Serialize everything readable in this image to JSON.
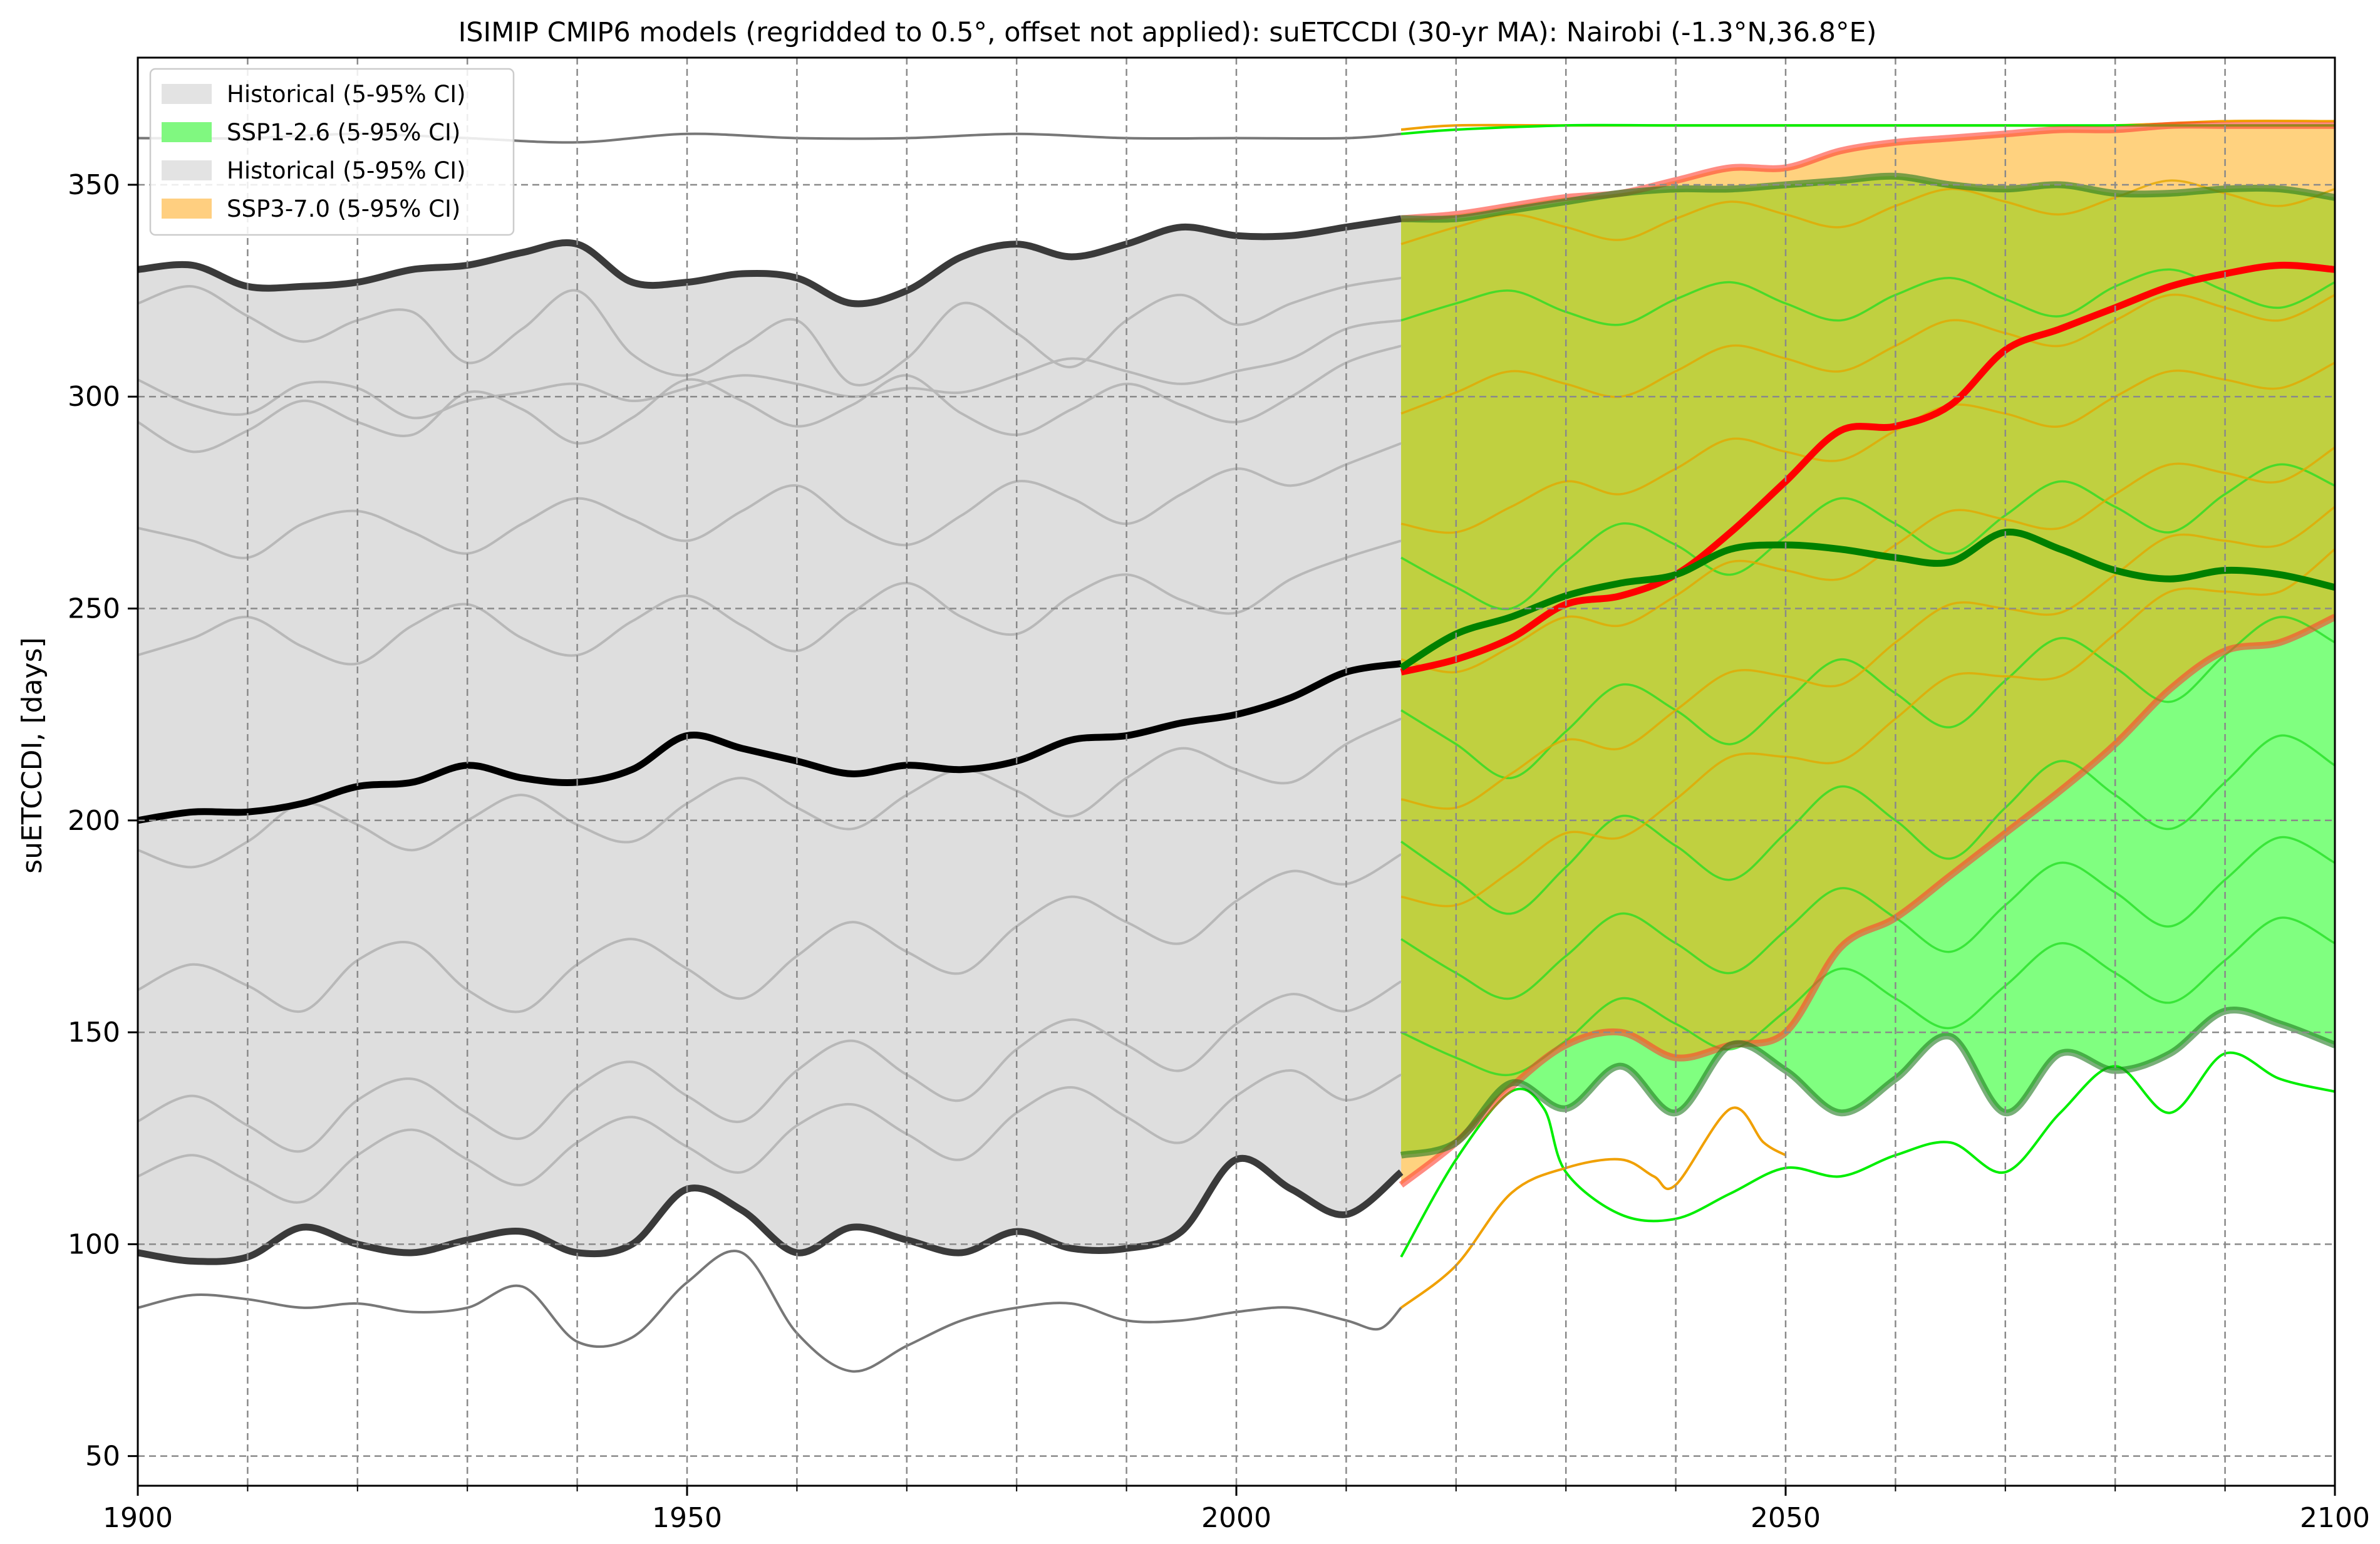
{
  "chart_data": {
    "type": "line",
    "title": "ISIMIP CMIP6 models (regridded to 0.5°, offset not applied): suETCCDI (30-yr MA): Nairobi (-1.3°N,36.8°E)",
    "xlabel": "",
    "ylabel": "suETCCDI, [days]",
    "xlim": [
      1900,
      2100
    ],
    "ylim": [
      43,
      380
    ],
    "x_ticks": [
      1900,
      1950,
      2000,
      2050,
      2100
    ],
    "y_ticks": [
      50,
      100,
      150,
      200,
      250,
      300,
      350
    ],
    "x_minor_ticks": [
      1910,
      1920,
      1930,
      1940,
      1960,
      1970,
      1980,
      1990,
      2010,
      2020,
      2030,
      2040,
      2060,
      2070,
      2080,
      2090
    ],
    "grid": true,
    "legend_position": "top-left",
    "legend": [
      {
        "label": "Historical (5-95% CI)",
        "color": "#e3e3e3"
      },
      {
        "label": "SSP1-2.6 (5-95% CI)",
        "color": "#80f880"
      },
      {
        "label": "Historical (5-95% CI)",
        "color": "#e3e3e3"
      },
      {
        "label": "SSP3-7.0 (5-95% CI)",
        "color": "#ffcf80"
      }
    ],
    "colors": {
      "historical_band": "#dedede",
      "ssp126_band": "#80ff80",
      "ssp370_band": "#ffa500",
      "overlap_band": "#c0d040",
      "historical_median": "#000000",
      "historical_bounds": "#3a3a3a",
      "ssp126_median": "#008000",
      "ssp370_median": "#ff0000"
    },
    "bands": [
      {
        "name": "Historical (5-95% CI)",
        "x": [
          1900,
          1905,
          1910,
          1915,
          1920,
          1925,
          1930,
          1935,
          1940,
          1945,
          1950,
          1955,
          1960,
          1965,
          1970,
          1975,
          1980,
          1985,
          1990,
          1995,
          2000,
          2005,
          2010,
          2015
        ],
        "lower": [
          98,
          96,
          97,
          104,
          100,
          98,
          101,
          103,
          98,
          100,
          113,
          108,
          98,
          104,
          101,
          98,
          103,
          99,
          99,
          103,
          120,
          113,
          107,
          117
        ],
        "upper": [
          330,
          331,
          326,
          326,
          327,
          330,
          331,
          334,
          336,
          327,
          327,
          329,
          328,
          322,
          325,
          333,
          336,
          333,
          336,
          340,
          338,
          338,
          340,
          342
        ]
      },
      {
        "name": "SSP1-2.6 (5-95% CI)",
        "x": [
          2015,
          2020,
          2025,
          2030,
          2035,
          2040,
          2045,
          2050,
          2055,
          2060,
          2065,
          2070,
          2075,
          2080,
          2085,
          2090,
          2095,
          2100
        ],
        "lower": [
          121,
          124,
          138,
          132,
          142,
          131,
          147,
          141,
          131,
          139,
          149,
          131,
          145,
          141,
          145,
          155,
          152,
          147
        ],
        "upper": [
          342,
          342,
          344,
          346,
          348,
          349,
          349,
          350,
          351,
          352,
          350,
          349,
          350,
          348,
          348,
          349,
          349,
          347
        ]
      },
      {
        "name": "SSP3-7.0 (5-95% CI)",
        "x": [
          2015,
          2020,
          2025,
          2030,
          2035,
          2040,
          2045,
          2050,
          2055,
          2060,
          2065,
          2070,
          2075,
          2080,
          2085,
          2090,
          2095,
          2100
        ],
        "lower": [
          114,
          124,
          137,
          147,
          150,
          144,
          147,
          150,
          170,
          177,
          187,
          197,
          207,
          218,
          231,
          240,
          242,
          248
        ],
        "upper": [
          342,
          343,
          345,
          347,
          348,
          351,
          354,
          354,
          358,
          360,
          361,
          362,
          363,
          363,
          364,
          364,
          364,
          364
        ]
      }
    ],
    "series": [
      {
        "name": "Historical median",
        "x": [
          1900,
          1905,
          1910,
          1915,
          1920,
          1925,
          1930,
          1935,
          1940,
          1945,
          1950,
          1955,
          1960,
          1965,
          1970,
          1975,
          1980,
          1985,
          1990,
          1995,
          2000,
          2005,
          2010,
          2015
        ],
        "y": [
          200,
          202,
          202,
          204,
          208,
          209,
          213,
          210,
          209,
          212,
          220,
          217,
          214,
          211,
          213,
          212,
          214,
          219,
          220,
          223,
          225,
          229,
          235,
          237
        ]
      },
      {
        "name": "SSP1-2.6 median",
        "x": [
          2015,
          2020,
          2025,
          2030,
          2035,
          2040,
          2045,
          2050,
          2055,
          2060,
          2065,
          2070,
          2075,
          2080,
          2085,
          2090,
          2095,
          2100
        ],
        "y": [
          236,
          244,
          248,
          253,
          256,
          258,
          264,
          265,
          264,
          262,
          261,
          268,
          264,
          259,
          257,
          259,
          258,
          255
        ]
      },
      {
        "name": "SSP3-7.0 median",
        "x": [
          2015,
          2020,
          2025,
          2030,
          2035,
          2040,
          2045,
          2050,
          2055,
          2060,
          2065,
          2070,
          2075,
          2080,
          2085,
          2090,
          2095,
          2100
        ],
        "y": [
          235,
          238,
          243,
          251,
          253,
          258,
          268,
          280,
          292,
          293,
          298,
          311,
          316,
          321,
          326,
          329,
          331,
          330
        ]
      },
      {
        "name": "Historical ensemble max",
        "x": [
          1900,
          1910,
          1920,
          1930,
          1940,
          1950,
          1960,
          1970,
          1980,
          1990,
          2000,
          2010,
          2015
        ],
        "y": [
          361,
          361,
          362,
          361,
          360,
          362,
          361,
          361,
          362,
          361,
          361,
          361,
          362
        ]
      },
      {
        "name": "Historical ensemble min",
        "x": [
          1900,
          1905,
          1910,
          1915,
          1920,
          1925,
          1930,
          1935,
          1940,
          1945,
          1950,
          1955,
          1960,
          1965,
          1970,
          1975,
          1980,
          1985,
          1990,
          1995,
          2000,
          2005,
          2010,
          2013,
          2015
        ],
        "y": [
          85,
          88,
          87,
          85,
          86,
          84,
          85,
          90,
          77,
          78,
          91,
          98,
          79,
          70,
          76,
          82,
          85,
          86,
          82,
          82,
          84,
          85,
          82,
          80,
          85
        ]
      },
      {
        "name": "SSP1-2.6 ensemble max",
        "x": [
          2015,
          2020,
          2030,
          2040,
          2050,
          2060,
          2070,
          2080,
          2090,
          2100
        ],
        "y": [
          362,
          363,
          364,
          364,
          364,
          364,
          364,
          364,
          364,
          364
        ]
      },
      {
        "name": "SSP1-2.6 ensemble min",
        "x": [
          2015,
          2020,
          2025,
          2028,
          2030,
          2035,
          2040,
          2045,
          2050,
          2055,
          2060,
          2065,
          2070,
          2075,
          2080,
          2085,
          2090,
          2095,
          2100
        ],
        "y": [
          97,
          120,
          136,
          132,
          117,
          107,
          106,
          112,
          118,
          116,
          121,
          124,
          117,
          131,
          142,
          131,
          145,
          139,
          136
        ]
      },
      {
        "name": "SSP3-7.0 ensemble max",
        "x": [
          2015,
          2020,
          2030,
          2040,
          2050,
          2060,
          2070,
          2080,
          2090,
          2100
        ],
        "y": [
          363,
          364,
          364,
          364,
          364,
          364,
          364,
          364,
          365,
          365
        ]
      },
      {
        "name": "SSP3-7.0 ensemble min",
        "x": [
          2015,
          2020,
          2025,
          2030,
          2035,
          2038,
          2040,
          2045,
          2048,
          2050
        ],
        "y": [
          85,
          95,
          112,
          118,
          120,
          116,
          114,
          132,
          124,
          121
        ]
      }
    ],
    "individual_models": {
      "historical": [
        [
          322,
          326,
          319,
          313,
          318,
          320,
          308,
          316,
          325,
          310,
          305,
          312,
          318,
          303,
          309,
          322,
          315,
          307,
          318,
          324,
          317,
          322,
          326,
          328
        ],
        [
          304,
          298,
          296,
          303,
          302,
          295,
          299,
          301,
          303,
          299,
          302,
          305,
          303,
          300,
          302,
          301,
          305,
          309,
          306,
          303,
          306,
          309,
          316,
          318
        ],
        [
          294,
          287,
          292,
          299,
          294,
          291,
          301,
          297,
          289,
          295,
          304,
          299,
          293,
          298,
          305,
          296,
          291,
          297,
          303,
          298,
          294,
          300,
          308,
          312
        ],
        [
          269,
          266,
          262,
          270,
          273,
          268,
          263,
          270,
          276,
          271,
          266,
          273,
          279,
          270,
          265,
          272,
          280,
          276,
          270,
          277,
          283,
          279,
          284,
          289
        ],
        [
          239,
          243,
          248,
          241,
          237,
          246,
          251,
          243,
          239,
          247,
          253,
          246,
          240,
          249,
          256,
          248,
          244,
          253,
          258,
          252,
          249,
          257,
          262,
          266
        ],
        [
          193,
          189,
          195,
          204,
          199,
          193,
          200,
          206,
          199,
          195,
          204,
          210,
          203,
          198,
          206,
          212,
          207,
          201,
          210,
          217,
          212,
          209,
          218,
          224
        ],
        [
          160,
          166,
          161,
          155,
          167,
          171,
          160,
          155,
          166,
          172,
          165,
          158,
          168,
          176,
          169,
          164,
          175,
          182,
          176,
          171,
          181,
          188,
          185,
          192
        ],
        [
          129,
          135,
          128,
          122,
          134,
          139,
          131,
          125,
          137,
          143,
          135,
          129,
          141,
          148,
          140,
          134,
          146,
          153,
          147,
          141,
          152,
          159,
          155,
          162
        ],
        [
          116,
          121,
          115,
          110,
          121,
          127,
          120,
          114,
          124,
          130,
          123,
          117,
          128,
          133,
          126,
          120,
          131,
          137,
          130,
          124,
          135,
          141,
          134,
          140
        ]
      ],
      "ssp126": [
        [
          318,
          322,
          325,
          320,
          317,
          323,
          327,
          322,
          318,
          324,
          328,
          323,
          319,
          326,
          330,
          325,
          321,
          327
        ],
        [
          262,
          255,
          250,
          261,
          270,
          265,
          258,
          267,
          276,
          270,
          263,
          272,
          280,
          274,
          268,
          277,
          284,
          279
        ],
        [
          226,
          218,
          210,
          221,
          232,
          226,
          218,
          228,
          238,
          230,
          222,
          233,
          243,
          236,
          228,
          239,
          248,
          242
        ],
        [
          195,
          186,
          178,
          189,
          201,
          194,
          186,
          197,
          208,
          200,
          191,
          203,
          214,
          206,
          198,
          209,
          220,
          213
        ],
        [
          172,
          164,
          158,
          168,
          178,
          171,
          164,
          174,
          184,
          177,
          169,
          180,
          190,
          183,
          175,
          186,
          196,
          190
        ],
        [
          150,
          144,
          140,
          148,
          158,
          152,
          146,
          155,
          165,
          158,
          151,
          161,
          171,
          164,
          157,
          167,
          177,
          171
        ]
      ],
      "ssp370": [
        [
          336,
          340,
          343,
          340,
          337,
          342,
          346,
          343,
          340,
          345,
          349,
          346,
          343,
          347,
          351,
          348,
          345,
          349
        ],
        [
          296,
          301,
          306,
          303,
          300,
          306,
          312,
          309,
          306,
          312,
          318,
          315,
          312,
          318,
          324,
          321,
          318,
          324
        ],
        [
          270,
          268,
          274,
          280,
          277,
          283,
          290,
          287,
          285,
          292,
          298,
          296,
          293,
          300,
          306,
          304,
          302,
          308
        ],
        [
          238,
          235,
          241,
          248,
          246,
          253,
          261,
          259,
          257,
          265,
          273,
          271,
          269,
          277,
          284,
          282,
          280,
          288
        ],
        [
          205,
          203,
          211,
          219,
          217,
          226,
          235,
          234,
          232,
          242,
          251,
          250,
          249,
          258,
          267,
          266,
          265,
          274
        ],
        [
          182,
          180,
          188,
          197,
          196,
          205,
          215,
          215,
          214,
          224,
          234,
          234,
          234,
          244,
          254,
          254,
          254,
          264
        ]
      ]
    }
  }
}
